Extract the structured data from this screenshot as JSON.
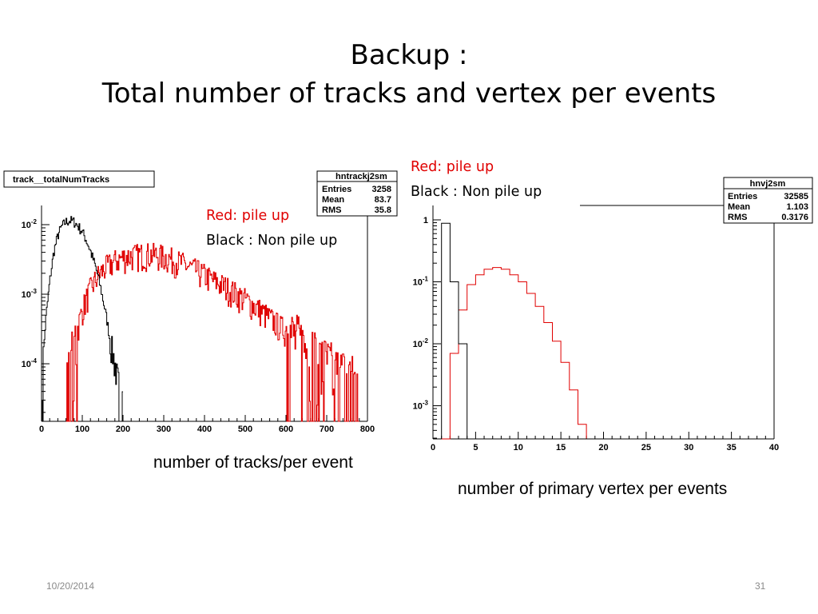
{
  "slide": {
    "title_line1": "Backup :",
    "title_line2": "Total number of tracks and vertex per events",
    "footer_date": "10/20/2014",
    "page_number": "31"
  },
  "left_note": {
    "red_label": "Red: pile up",
    "black_label": "Black : Non pile up"
  },
  "right_note": {
    "red_label": "Red: pile up",
    "black_label": "Black : Non pile up"
  },
  "colors": {
    "pileup": "#e00000",
    "non_pileup": "#000000"
  },
  "chart_data": [
    {
      "type": "histogram",
      "title": "track__totalNumTracks",
      "xlabel": "number of tracks/per event",
      "y_scale": "log",
      "xlim": [
        0,
        800
      ],
      "x_ticks": [
        "0",
        "100",
        "200",
        "300",
        "400",
        "500",
        "600",
        "700",
        "800"
      ],
      "y_ticks": [
        "10-2",
        "10-3",
        "10-4"
      ],
      "stats_box": {
        "name": "hntrackj2sm",
        "entries": "3258",
        "mean": "83.7",
        "rms": "35.8"
      },
      "series": [
        {
          "name": "Non pile up",
          "color": "#000000",
          "points": [
            [
              0,
              5e-05
            ],
            [
              10,
              0.0004
            ],
            [
              20,
              0.0015
            ],
            [
              30,
              0.004
            ],
            [
              40,
              0.007
            ],
            [
              50,
              0.0095
            ],
            [
              60,
              0.011
            ],
            [
              70,
              0.0115
            ],
            [
              80,
              0.011
            ],
            [
              90,
              0.0095
            ],
            [
              100,
              0.008
            ],
            [
              110,
              0.006
            ],
            [
              120,
              0.0042
            ],
            [
              130,
              0.0028
            ],
            [
              140,
              0.0017
            ],
            [
              150,
              0.0009
            ],
            [
              160,
              0.00045
            ],
            [
              170,
              0.0002
            ],
            [
              180,
              0.0001
            ],
            [
              190,
              5e-05
            ],
            [
              200,
              3e-05
            ]
          ]
        },
        {
          "name": "Red: pile up",
          "color": "#e00000",
          "points": [
            [
              60,
              4e-05
            ],
            [
              80,
              0.0002
            ],
            [
              100,
              0.0006
            ],
            [
              120,
              0.0012
            ],
            [
              140,
              0.0019
            ],
            [
              160,
              0.0025
            ],
            [
              180,
              0.003
            ],
            [
              200,
              0.0034
            ],
            [
              220,
              0.0036
            ],
            [
              240,
              0.0037
            ],
            [
              260,
              0.0038
            ],
            [
              280,
              0.0037
            ],
            [
              300,
              0.0035
            ],
            [
              320,
              0.0032
            ],
            [
              340,
              0.0029
            ],
            [
              360,
              0.0025
            ],
            [
              380,
              0.0022
            ],
            [
              400,
              0.0019
            ],
            [
              420,
              0.0016
            ],
            [
              440,
              0.0014
            ],
            [
              460,
              0.0012
            ],
            [
              480,
              0.001
            ],
            [
              500,
              0.00085
            ],
            [
              520,
              0.0007
            ],
            [
              540,
              0.00057
            ],
            [
              560,
              0.00046
            ],
            [
              580,
              0.00037
            ],
            [
              600,
              0.0003
            ],
            [
              620,
              0.00024
            ],
            [
              640,
              0.00019
            ],
            [
              660,
              0.00015
            ],
            [
              680,
              0.00012
            ],
            [
              700,
              0.0001
            ],
            [
              720,
              8e-05
            ],
            [
              740,
              7e-05
            ],
            [
              760,
              6e-05
            ],
            [
              780,
              5e-05
            ]
          ]
        }
      ]
    },
    {
      "type": "histogram",
      "title": "",
      "xlabel": "number of primary vertex per events",
      "y_scale": "log",
      "xlim": [
        0,
        40
      ],
      "x_ticks": [
        "0",
        "5",
        "10",
        "15",
        "20",
        "25",
        "30",
        "35",
        "40"
      ],
      "y_ticks": [
        "1",
        "10-1",
        "10-2",
        "10-3"
      ],
      "stats_box": {
        "name": "hnvj2sm",
        "entries": "32585",
        "mean": "1.103",
        "rms": "0.3176"
      },
      "series": [
        {
          "name": "Black : Non pile up",
          "color": "#000000",
          "bin_width": 1,
          "bins": [
            [
              1,
              0.88
            ],
            [
              2,
              0.1
            ],
            [
              3,
              0.01
            ]
          ]
        },
        {
          "name": "Red: pile up",
          "color": "#e00000",
          "bin_width": 1,
          "bins": [
            [
              1,
              5e-07
            ],
            [
              2,
              0.007
            ],
            [
              3,
              0.035
            ],
            [
              4,
              0.09
            ],
            [
              5,
              0.13
            ],
            [
              6,
              0.16
            ],
            [
              7,
              0.17
            ],
            [
              8,
              0.16
            ],
            [
              9,
              0.13
            ],
            [
              10,
              0.1
            ],
            [
              11,
              0.065
            ],
            [
              12,
              0.04
            ],
            [
              13,
              0.022
            ],
            [
              14,
              0.011
            ],
            [
              15,
              0.005
            ],
            [
              16,
              0.0018
            ],
            [
              17,
              0.0005
            ]
          ]
        }
      ]
    }
  ]
}
